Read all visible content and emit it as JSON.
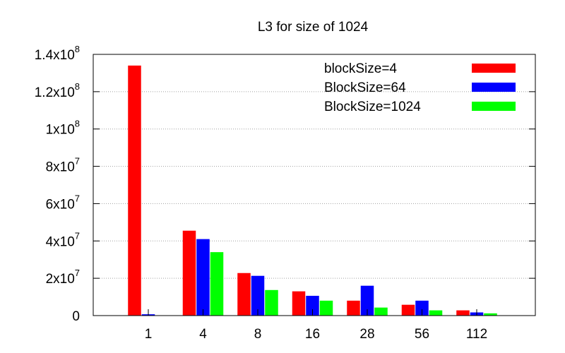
{
  "chart_data": {
    "type": "bar",
    "title": "L3 for size of 1024",
    "xlabel": "",
    "ylabel": "",
    "categories": [
      "1",
      "4",
      "8",
      "16",
      "28",
      "56",
      "112"
    ],
    "series": [
      {
        "name": "blockSize=4",
        "color": "#ff0000",
        "values": [
          134000000,
          45500000,
          22800000,
          13000000,
          8000000,
          5800000,
          2800000
        ]
      },
      {
        "name": "BlockSize=64",
        "color": "#0000ff",
        "values": [
          700000,
          41000000,
          21300000,
          10600000,
          16000000,
          8000000,
          1700000
        ]
      },
      {
        "name": "BlockSize=1024",
        "color": "#00ff00",
        "values": [
          0,
          34000000,
          13700000,
          8000000,
          4300000,
          2800000,
          1200000
        ]
      }
    ],
    "ylim": [
      0,
      140000000
    ],
    "yticks": [
      {
        "mantissa": "0",
        "exp": ""
      },
      {
        "mantissa": "2x10",
        "exp": "7"
      },
      {
        "mantissa": "4x10",
        "exp": "7"
      },
      {
        "mantissa": "6x10",
        "exp": "7"
      },
      {
        "mantissa": "8x10",
        "exp": "7"
      },
      {
        "mantissa": "1x10",
        "exp": "8"
      },
      {
        "mantissa": "1.2x10",
        "exp": "8"
      },
      {
        "mantissa": "1.4x10",
        "exp": "8"
      }
    ],
    "grid": true,
    "legend_position": "top-right"
  }
}
